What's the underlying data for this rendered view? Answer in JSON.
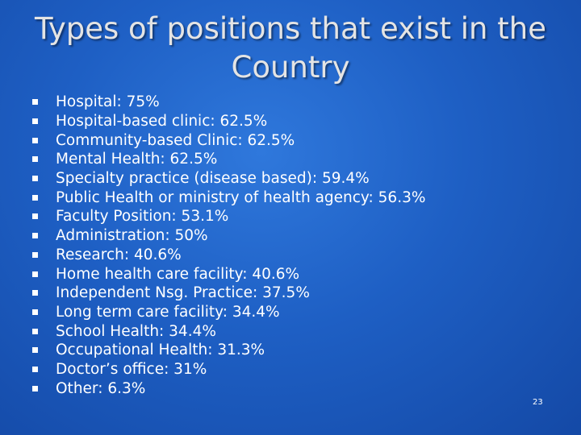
{
  "slide": {
    "title_line1": "Types of positions that exist in the",
    "title_line2": "Country",
    "items": [
      "Hospital: 75%",
      "Hospital-based clinic: 62.5%",
      "Community-based Clinic: 62.5%",
      "Mental Health: 62.5%",
      "Specialty practice (disease based): 59.4%",
      "Public Health or ministry of health agency: 56.3%",
      "Faculty Position: 53.1%",
      "Administration: 50%",
      "Research: 40.6%",
      "Home health care facility: 40.6%",
      "Independent Nsg. Practice: 37.5%",
      "Long term care facility: 34.4%",
      "School Health: 34.4%",
      "Occupational Health: 31.3%",
      "Doctor’s office: 31%",
      "Other: 6.3%"
    ],
    "slide_number": "23",
    "colors": {
      "background": "#1e5fc4",
      "title": "#e4e4e4",
      "text": "#ffffff"
    }
  }
}
